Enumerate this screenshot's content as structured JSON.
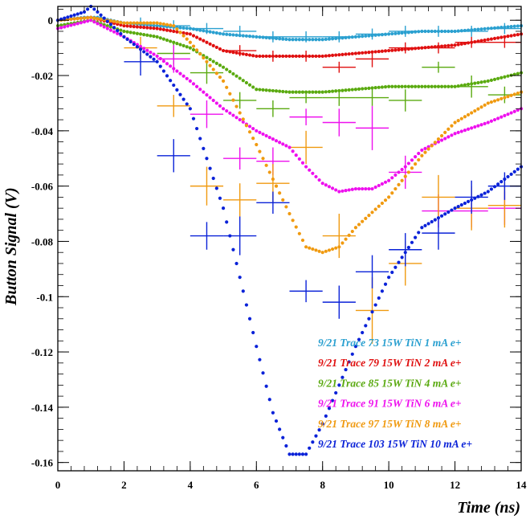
{
  "chart_data": {
    "type": "scatter",
    "title": "",
    "xlabel": "Time (ns)",
    "ylabel": "Button Signal (V)",
    "xlim": [
      0,
      14
    ],
    "ylim": [
      -0.163,
      0.005
    ],
    "x_ticks": [
      0,
      2,
      4,
      6,
      8,
      10,
      12,
      14
    ],
    "x_tick_labels": [
      "0",
      "2",
      "4",
      "6",
      "8",
      "10",
      "12",
      "14"
    ],
    "y_ticks": [
      0,
      -0.02,
      -0.04,
      -0.06,
      -0.08,
      -0.1,
      -0.12,
      -0.14,
      -0.16
    ],
    "y_tick_labels": [
      "0",
      "-0.02",
      "-0.04",
      "-0.06",
      "-0.08",
      "-0.1",
      "-0.12",
      "-0.14",
      "-0.16"
    ],
    "grid": false,
    "legend_position": "bottom-right",
    "series": [
      {
        "name": "9/21 Trace 73 15W TiN 1 mA e+",
        "color": "#2aa0d0",
        "curve": [
          [
            0,
            0
          ],
          [
            0.8,
            0.001
          ],
          [
            1.2,
            0.001
          ],
          [
            2,
            -0.001
          ],
          [
            3,
            -0.002
          ],
          [
            4,
            -0.003
          ],
          [
            5,
            -0.005
          ],
          [
            6,
            -0.006
          ],
          [
            7,
            -0.007
          ],
          [
            8,
            -0.007
          ],
          [
            9,
            -0.006
          ],
          [
            10,
            -0.005
          ],
          [
            11,
            -0.004
          ],
          [
            12,
            -0.004
          ],
          [
            13,
            -0.003
          ],
          [
            14,
            -0.002
          ]
        ],
        "crosses": [
          [
            2.5,
            -0.001,
            0.5,
            0.002
          ],
          [
            3.5,
            -0.002,
            0.5,
            0.002
          ],
          [
            4.5,
            -0.003,
            0.5,
            0.002
          ],
          [
            5.5,
            -0.004,
            0.5,
            0.002
          ],
          [
            6.5,
            -0.006,
            0.5,
            0.002
          ],
          [
            7.5,
            -0.006,
            0.5,
            0.002
          ],
          [
            8.5,
            -0.006,
            0.5,
            0.002
          ],
          [
            9.5,
            -0.005,
            0.5,
            0.002
          ],
          [
            10.5,
            -0.004,
            0.5,
            0.002
          ],
          [
            11.5,
            -0.004,
            0.5,
            0.002
          ],
          [
            12.5,
            -0.004,
            0.5,
            0.002
          ],
          [
            13.5,
            -0.003,
            0.5,
            0.002
          ]
        ]
      },
      {
        "name": "9/21 Trace 79 15W TiN 2 mA e+",
        "color": "#e01010",
        "curve": [
          [
            0,
            0
          ],
          [
            1,
            0.001
          ],
          [
            2,
            -0.002
          ],
          [
            3,
            -0.003
          ],
          [
            4,
            -0.005
          ],
          [
            4.5,
            -0.008
          ],
          [
            5,
            -0.011
          ],
          [
            6,
            -0.013
          ],
          [
            7,
            -0.013
          ],
          [
            8,
            -0.013
          ],
          [
            9,
            -0.012
          ],
          [
            10,
            -0.011
          ],
          [
            11,
            -0.01
          ],
          [
            12,
            -0.009
          ],
          [
            13,
            -0.007
          ],
          [
            14,
            -0.005
          ]
        ],
        "crosses": [
          [
            5.5,
            -0.011,
            0.5,
            0.002
          ],
          [
            6.5,
            -0.013,
            0.5,
            0.002
          ],
          [
            7.5,
            -0.013,
            0.5,
            0.002
          ],
          [
            8.5,
            -0.017,
            0.5,
            0.002
          ],
          [
            9.5,
            -0.014,
            0.5,
            0.003
          ],
          [
            10.5,
            -0.01,
            0.5,
            0.002
          ],
          [
            11.5,
            -0.01,
            0.5,
            0.002
          ],
          [
            12.5,
            -0.008,
            0.5,
            0.002
          ],
          [
            13.5,
            -0.008,
            0.5,
            0.002
          ]
        ]
      },
      {
        "name": "9/21 Trace 85 15W TiN 4 mA e+",
        "color": "#5aaa10",
        "curve": [
          [
            0,
            -0.002
          ],
          [
            1,
            0
          ],
          [
            2,
            -0.004
          ],
          [
            3,
            -0.006
          ],
          [
            4,
            -0.01
          ],
          [
            5,
            -0.017
          ],
          [
            6,
            -0.025
          ],
          [
            7,
            -0.026
          ],
          [
            8,
            -0.026
          ],
          [
            9,
            -0.025
          ],
          [
            10,
            -0.024
          ],
          [
            11,
            -0.024
          ],
          [
            12,
            -0.024
          ],
          [
            13,
            -0.022
          ],
          [
            14,
            -0.019
          ]
        ],
        "crosses": [
          [
            3.5,
            -0.012,
            0.5,
            0.004
          ],
          [
            4.5,
            -0.019,
            0.5,
            0.004
          ],
          [
            5.5,
            -0.029,
            0.5,
            0.003
          ],
          [
            6.5,
            -0.032,
            0.5,
            0.003
          ],
          [
            7.5,
            -0.028,
            0.5,
            0.002
          ],
          [
            8.5,
            -0.028,
            0.5,
            0.003
          ],
          [
            9.5,
            -0.028,
            0.5,
            0.003
          ],
          [
            10.5,
            -0.029,
            0.5,
            0.004
          ],
          [
            11.5,
            -0.017,
            0.5,
            0.002
          ],
          [
            12.5,
            -0.024,
            0.5,
            0.004
          ],
          [
            13.5,
            -0.027,
            0.5,
            0.003
          ]
        ]
      },
      {
        "name": "9/21 Trace 91 15W TiN 6 mA e+",
        "color": "#ee10ee",
        "curve": [
          [
            0,
            -0.003
          ],
          [
            1,
            0
          ],
          [
            2,
            -0.006
          ],
          [
            3,
            -0.013
          ],
          [
            4,
            -0.022
          ],
          [
            5,
            -0.032
          ],
          [
            6,
            -0.04
          ],
          [
            7,
            -0.046
          ],
          [
            7.5,
            -0.053
          ],
          [
            8,
            -0.059
          ],
          [
            8.5,
            -0.062
          ],
          [
            9,
            -0.061
          ],
          [
            9.5,
            -0.061
          ],
          [
            10,
            -0.058
          ],
          [
            10.5,
            -0.053
          ],
          [
            11,
            -0.047
          ],
          [
            12,
            -0.041
          ],
          [
            13,
            -0.037
          ],
          [
            14,
            -0.032
          ]
        ],
        "crosses": [
          [
            3.5,
            -0.014,
            0.5,
            0.005
          ],
          [
            4.5,
            -0.034,
            0.5,
            0.005
          ],
          [
            5.5,
            -0.05,
            0.5,
            0.004
          ],
          [
            6.5,
            -0.051,
            0.5,
            0.005
          ],
          [
            7.5,
            -0.035,
            0.5,
            0.003
          ],
          [
            8.5,
            -0.037,
            0.5,
            0.005
          ],
          [
            9.5,
            -0.039,
            0.5,
            0.008
          ],
          [
            10.5,
            -0.055,
            0.5,
            0.006
          ],
          [
            11.5,
            -0.069,
            0.5,
            0.006
          ],
          [
            12.5,
            -0.069,
            0.5,
            0.006
          ],
          [
            13.5,
            -0.068,
            0.5,
            0.006
          ]
        ]
      },
      {
        "name": "9/21 Trace 97 15W TiN 8 mA e+",
        "color": "#f09a10",
        "curve": [
          [
            0,
            0
          ],
          [
            1,
            0.001
          ],
          [
            2,
            -0.001
          ],
          [
            3,
            -0.001
          ],
          [
            3.5,
            -0.002
          ],
          [
            4,
            -0.008
          ],
          [
            5,
            -0.022
          ],
          [
            6,
            -0.045
          ],
          [
            7,
            -0.07
          ],
          [
            7.5,
            -0.082
          ],
          [
            8,
            -0.084
          ],
          [
            8.5,
            -0.082
          ],
          [
            9,
            -0.075
          ],
          [
            10,
            -0.064
          ],
          [
            11,
            -0.049
          ],
          [
            12,
            -0.037
          ],
          [
            13,
            -0.03
          ],
          [
            14,
            -0.026
          ]
        ],
        "crosses": [
          [
            2.5,
            -0.01,
            0.5,
            0.004
          ],
          [
            3.5,
            -0.031,
            0.5,
            0.004
          ],
          [
            4.5,
            -0.06,
            0.5,
            0.007
          ],
          [
            5.5,
            -0.065,
            0.5,
            0.006
          ],
          [
            6.5,
            -0.059,
            0.5,
            0.007
          ],
          [
            7.5,
            -0.046,
            0.5,
            0.006
          ],
          [
            8.5,
            -0.078,
            0.5,
            0.008
          ],
          [
            9.5,
            -0.105,
            0.5,
            0.012
          ],
          [
            10.5,
            -0.088,
            0.5,
            0.008
          ],
          [
            11.5,
            -0.064,
            0.5,
            0.008
          ],
          [
            12.5,
            -0.068,
            0.5,
            0.008
          ],
          [
            13.5,
            -0.067,
            0.5,
            0.008
          ]
        ]
      },
      {
        "name": "9/21 Trace 103 15W TiN 10 mA e+",
        "color": "#0a22d8",
        "curve": [
          [
            0,
            0
          ],
          [
            0.8,
            0.003
          ],
          [
            1,
            0.005
          ],
          [
            1.2,
            0.003
          ],
          [
            2,
            -0.006
          ],
          [
            3,
            -0.015
          ],
          [
            4,
            -0.032
          ],
          [
            5,
            -0.068
          ],
          [
            6,
            -0.118
          ],
          [
            6.5,
            -0.142
          ],
          [
            7,
            -0.157
          ],
          [
            7.5,
            -0.157
          ],
          [
            8,
            -0.146
          ],
          [
            9,
            -0.118
          ],
          [
            10,
            -0.093
          ],
          [
            11,
            -0.075
          ],
          [
            12,
            -0.068
          ],
          [
            13,
            -0.062
          ],
          [
            14,
            -0.053
          ]
        ],
        "crosses": [
          [
            2.5,
            -0.015,
            0.5,
            0.005
          ],
          [
            3.5,
            -0.049,
            0.5,
            0.006
          ],
          [
            4.5,
            -0.078,
            0.5,
            0.005
          ],
          [
            5.5,
            -0.078,
            0.5,
            0.007
          ],
          [
            6.5,
            -0.066,
            0.5,
            0.004
          ],
          [
            7.5,
            -0.098,
            0.5,
            0.004
          ],
          [
            8.5,
            -0.102,
            0.5,
            0.006
          ],
          [
            9.5,
            -0.091,
            0.5,
            0.006
          ],
          [
            10.5,
            -0.083,
            0.5,
            0.006
          ],
          [
            11.5,
            -0.077,
            0.5,
            0.006
          ],
          [
            12.5,
            -0.064,
            0.5,
            0.006
          ],
          [
            13.5,
            -0.06,
            0.5,
            0.005
          ]
        ]
      }
    ]
  }
}
